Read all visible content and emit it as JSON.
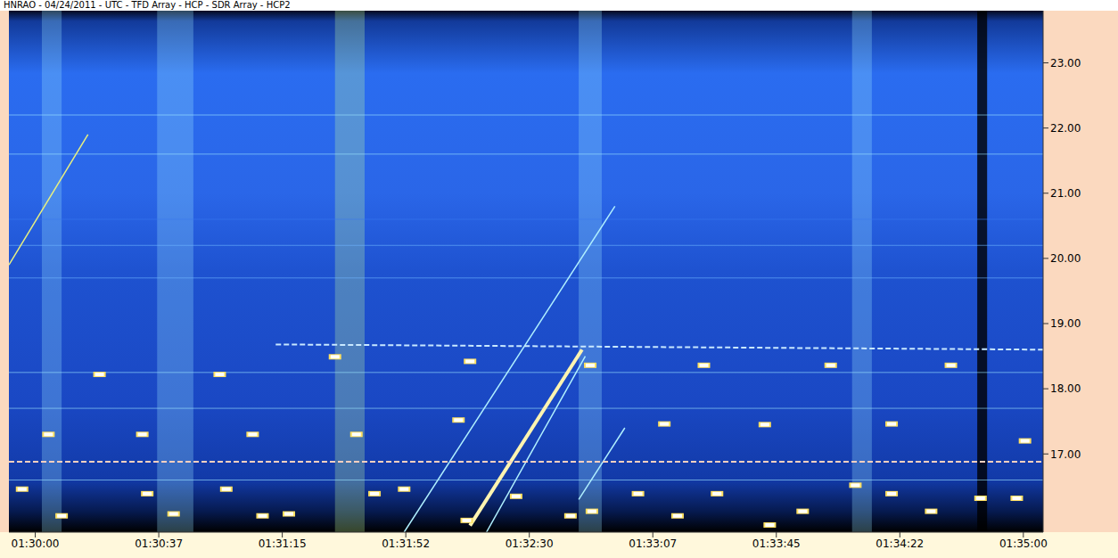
{
  "chart_data": {
    "type": "spectrogram",
    "title": "HNRAO - 04/24/2011 - UTC - TFD Array - HCP - SDR Array - HCP2",
    "xlim": [
      5392,
      5706
    ],
    "xticks": [
      {
        "value": 5400,
        "label": "01:30:00"
      },
      {
        "value": 5437.5,
        "label": "01:30:37"
      },
      {
        "value": 5475,
        "label": "01:31:15"
      },
      {
        "value": 5512.5,
        "label": "01:31:52"
      },
      {
        "value": 5550,
        "label": "01:32:30"
      },
      {
        "value": 5587.5,
        "label": "01:33:07"
      },
      {
        "value": 5625,
        "label": "01:33:45"
      },
      {
        "value": 5662.5,
        "label": "01:34:22"
      },
      {
        "value": 5700,
        "label": "01:35:00"
      }
    ],
    "ylim": [
      15.8,
      23.8
    ],
    "yticks": [
      {
        "value": 17,
        "label": "17.00"
      },
      {
        "value": 18,
        "label": "18.00"
      },
      {
        "value": 19,
        "label": "19.00"
      },
      {
        "value": 20,
        "label": "20.00"
      },
      {
        "value": 21,
        "label": "21.00"
      },
      {
        "value": 22,
        "label": "22.00"
      },
      {
        "value": 23,
        "label": "23.00"
      }
    ],
    "grid": false,
    "bursts": [
      {
        "x": [
          5402,
          5408
        ],
        "color": "#9fe8ff"
      },
      {
        "x": [
          5437,
          5448
        ],
        "color": "#9fe8ff"
      },
      {
        "x": [
          5491,
          5500
        ],
        "color": "#c8ff9a"
      },
      {
        "x": [
          5565,
          5572
        ],
        "color": "#9fe8ff"
      },
      {
        "x": [
          5648,
          5654
        ],
        "color": "#9fe8ff"
      },
      {
        "x": [
          5686,
          5689
        ],
        "color": "#000000"
      }
    ],
    "carriers": [
      {
        "value": 22.2,
        "color": "#9fe8ff"
      },
      {
        "value": 21.6,
        "color": "#9fe8ff"
      },
      {
        "value": 20.6,
        "color": "#3a78f0"
      },
      {
        "value": 20.2,
        "color": "#6fb8ff"
      },
      {
        "value": 19.7,
        "color": "#6fb8ff"
      },
      {
        "value": 18.25,
        "color": "#9fe8ff"
      },
      {
        "value": 17.7,
        "color": "#9fe8ff"
      },
      {
        "value": 16.6,
        "color": "#9fe8ff"
      }
    ],
    "series": [
      {
        "type": "line",
        "color": "#e8f080",
        "line_style": "solid",
        "x": [
          5392,
          5416
        ],
        "values": [
          19.9,
          21.9
        ]
      },
      {
        "type": "line",
        "color": "#b0f0ff",
        "line_style": "solid",
        "x": [
          5512,
          5576
        ],
        "values": [
          15.8,
          20.8
        ]
      },
      {
        "type": "line",
        "color": "#fff4b0",
        "line_style": "thick",
        "x": [
          5532,
          5566
        ],
        "values": [
          15.9,
          18.6
        ]
      },
      {
        "type": "line",
        "color": "#b0f0ff",
        "line_style": "solid",
        "x": [
          5537,
          5567
        ],
        "values": [
          15.8,
          18.5
        ]
      },
      {
        "type": "line",
        "color": "#b0f0ff",
        "line_style": "solid",
        "x": [
          5565,
          5579
        ],
        "values": [
          16.3,
          17.4
        ]
      },
      {
        "type": "line",
        "color": "#c8e8ff",
        "line_style": "dashed",
        "x": [
          5473,
          5706
        ],
        "values": [
          18.68,
          18.6
        ]
      },
      {
        "type": "line",
        "color": "#ffd0c0",
        "line_style": "dashed",
        "x": [
          5392,
          5706
        ],
        "values": [
          16.88,
          16.88
        ]
      },
      {
        "type": "scatter",
        "color": "#ffffff",
        "marker": "dash",
        "x": [
          5404,
          5432.5,
          5419.5,
          5456,
          5466,
          5491,
          5497.5,
          5532,
          5528.5,
          5568.5,
          5591,
          5603,
          5621.5,
          5641.5,
          5660,
          5678,
          5700.5,
          5396,
          5408,
          5434,
          5442,
          5458,
          5469,
          5477,
          5503,
          5512,
          5531,
          5546,
          5562.5,
          5569,
          5583,
          5595,
          5607,
          5623,
          5633,
          5649,
          5660,
          5672,
          5687,
          5698
        ],
        "values": [
          17.3,
          17.3,
          18.22,
          18.22,
          17.3,
          18.49,
          17.3,
          18.42,
          17.52,
          18.36,
          17.46,
          18.36,
          17.45,
          18.36,
          17.46,
          18.36,
          17.2,
          16.46,
          16.05,
          16.39,
          16.08,
          16.46,
          16.05,
          16.08,
          16.39,
          16.46,
          15.98,
          16.35,
          16.05,
          16.12,
          16.39,
          16.05,
          16.39,
          15.91,
          16.12,
          16.52,
          16.39,
          16.12,
          16.32,
          16.32
        ]
      }
    ]
  }
}
